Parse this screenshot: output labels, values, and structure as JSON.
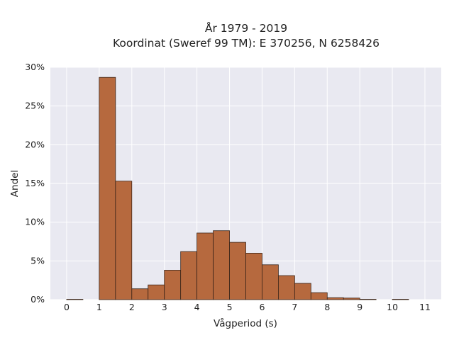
{
  "chart_data": {
    "type": "bar",
    "title_lines": [
      "År 1979 - 2019",
      "Koordinat (Sweref 99 TM): E 370256, N 6258426"
    ],
    "xlabel": "Vågperiod (s)",
    "ylabel": "Andel",
    "xlim": [
      -0.5,
      11.5
    ],
    "ylim": [
      0,
      30
    ],
    "x_ticks": [
      0,
      1,
      2,
      3,
      4,
      5,
      6,
      7,
      8,
      9,
      10,
      11
    ],
    "y_ticks": [
      {
        "value": 0,
        "label": "0%"
      },
      {
        "value": 5,
        "label": "5%"
      },
      {
        "value": 10,
        "label": "10%"
      },
      {
        "value": 15,
        "label": "15%"
      },
      {
        "value": 20,
        "label": "20%"
      },
      {
        "value": 25,
        "label": "25%"
      },
      {
        "value": 30,
        "label": "30%"
      }
    ],
    "bin_width": 0.5,
    "bins": [
      {
        "x0": 0.0,
        "value": 0.05
      },
      {
        "x0": 0.5,
        "value": 0.0
      },
      {
        "x0": 1.0,
        "value": 28.7
      },
      {
        "x0": 1.5,
        "value": 15.3
      },
      {
        "x0": 2.0,
        "value": 1.4
      },
      {
        "x0": 2.5,
        "value": 1.9
      },
      {
        "x0": 3.0,
        "value": 3.8
      },
      {
        "x0": 3.5,
        "value": 6.2
      },
      {
        "x0": 4.0,
        "value": 8.6
      },
      {
        "x0": 4.5,
        "value": 8.9
      },
      {
        "x0": 5.0,
        "value": 7.4
      },
      {
        "x0": 5.5,
        "value": 6.0
      },
      {
        "x0": 6.0,
        "value": 4.5
      },
      {
        "x0": 6.5,
        "value": 3.1
      },
      {
        "x0": 7.0,
        "value": 2.1
      },
      {
        "x0": 7.5,
        "value": 0.9
      },
      {
        "x0": 8.0,
        "value": 0.25
      },
      {
        "x0": 8.5,
        "value": 0.2
      },
      {
        "x0": 9.0,
        "value": 0.05
      },
      {
        "x0": 9.5,
        "value": 0.0
      },
      {
        "x0": 10.0,
        "value": 0.05
      }
    ],
    "grid": true,
    "colors": {
      "bar_fill": "#b6693e",
      "bar_edge": "#3a2418",
      "plot_bg": "#e9e9f1",
      "grid": "#ffffff"
    }
  }
}
